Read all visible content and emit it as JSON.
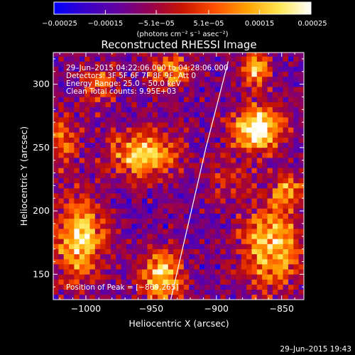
{
  "chart_data": {
    "type": "heatmap",
    "title": "Reconstructed RHESSI Image",
    "xlabel": "Heliocentric X (arcsec)",
    "ylabel": "Heliocentric Y (arcsec)",
    "xlim": [
      -1025,
      -833
    ],
    "ylim": [
      130,
      325
    ],
    "x_ticks": [
      -1000,
      -950,
      -900,
      -850
    ],
    "y_ticks": [
      150,
      200,
      250,
      300
    ],
    "x_tick_labels": [
      "−1000",
      "−950",
      "−900",
      "−850"
    ],
    "y_tick_labels": [
      "150",
      "200",
      "250",
      "300"
    ],
    "colorbar": {
      "min": -0.00025,
      "max": 0.00025,
      "ticks": [
        -0.00025,
        -0.00015,
        -5.1e-05,
        5.1e-05,
        0.00015,
        0.00025
      ],
      "tick_labels": [
        "−0.00025",
        "−0.00015",
        "−5.1e−05",
        "5.1e−05",
        "0.00015",
        "0.00025"
      ],
      "unit_label": "(photons cm⁻² s⁻¹ asec⁻²)",
      "colormap": [
        "#0000ff",
        "#3b00c8",
        "#6400a0",
        "#960050",
        "#c81400",
        "#ff5000",
        "#ffa000",
        "#ffe650",
        "#ffffff"
      ]
    },
    "info_lines": [
      "29–Jun–2015 04:22:06.000 to 04:28:06.000",
      "Detectors: 3F 5F 6F 7F 8F 9F, Att 0",
      "Energy Range: 25.0 – 50.0 keV",
      "Clean      Total counts: 9.95E+03"
    ],
    "peak_label": "Position of Peak = [−869,265]",
    "peak": [
      -869,
      265
    ],
    "sources": [
      {
        "x": -869,
        "y": 265,
        "sx": 13,
        "sy": 13,
        "amp": 1.0
      },
      {
        "x": -870,
        "y": 312,
        "sx": 8,
        "sy": 10,
        "amp": 0.75
      },
      {
        "x": -955,
        "y": 245,
        "sx": 18,
        "sy": 13,
        "amp": 0.8
      },
      {
        "x": -1005,
        "y": 178,
        "sx": 14,
        "sy": 22,
        "amp": 0.82
      },
      {
        "x": -942,
        "y": 148,
        "sx": 11,
        "sy": 14,
        "amp": 0.8
      },
      {
        "x": -858,
        "y": 172,
        "sx": 16,
        "sy": 24,
        "amp": 0.78
      },
      {
        "x": -935,
        "y": 310,
        "sx": 12,
        "sy": 10,
        "amp": 0.6
      },
      {
        "x": -990,
        "y": 300,
        "sx": 10,
        "sy": 12,
        "amp": 0.45
      },
      {
        "x": -1018,
        "y": 255,
        "sx": 8,
        "sy": 14,
        "amp": 0.5
      },
      {
        "x": -890,
        "y": 225,
        "sx": 10,
        "sy": 10,
        "amp": 0.35
      },
      {
        "x": -845,
        "y": 215,
        "sx": 8,
        "sy": 10,
        "amp": 0.55
      }
    ],
    "limb_curve": [
      [
        -935,
        130
      ],
      [
        -926,
        170
      ],
      [
        -917,
        210
      ],
      [
        -908,
        250
      ],
      [
        -898,
        290
      ],
      [
        -891,
        318
      ]
    ]
  },
  "timestamp": "29–Jun–2015 19:43"
}
